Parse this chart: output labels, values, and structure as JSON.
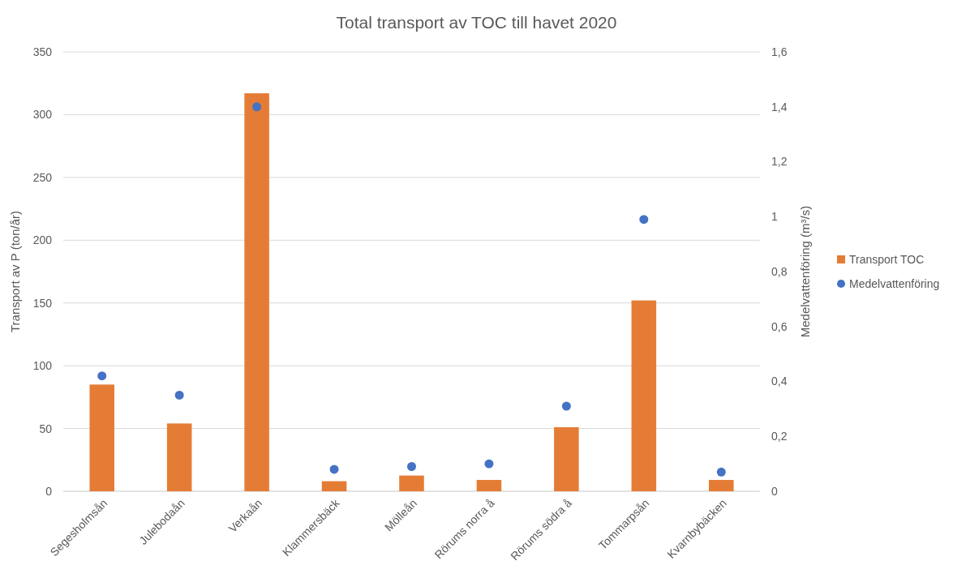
{
  "chart_data": {
    "type": "bar",
    "title": "Total transport av TOC till havet 2020",
    "ylabel": "Transport av P (ton/år)",
    "y2label": "Medelvattenföring (m³/s)",
    "categories": [
      "Segesholmsån",
      "Julebodaån",
      "Verkaån",
      "Klammersbäck",
      "Mölleån",
      "Rörums norra å",
      "Rörums södra å",
      "Tommarpsån",
      "Kvarnbybäcken"
    ],
    "series": [
      {
        "name": "Transport TOC",
        "color": "#e57c35",
        "values": [
          85,
          54,
          317,
          8,
          12.5,
          9,
          51,
          152,
          9
        ]
      },
      {
        "name": "Medelvattenföring",
        "type": "scatter",
        "axis": "y2",
        "color": "#4472c4",
        "values": [
          0.42,
          0.35,
          1.4,
          0.08,
          0.09,
          0.1,
          0.31,
          0.99,
          0.07
        ]
      }
    ],
    "ylim": [
      0,
      350
    ],
    "yticks": [
      0,
      50,
      100,
      150,
      200,
      250,
      300,
      350
    ],
    "y2lim": [
      0,
      1.6
    ],
    "y2ticks": [
      0,
      {
        "value": 0.2,
        "label": "0,2"
      },
      {
        "value": 0.4,
        "label": "0,4"
      },
      {
        "value": 0.6,
        "label": "0,6"
      },
      {
        "value": 0.8,
        "label": "0,8"
      },
      1,
      {
        "value": 1.2,
        "label": "1,2"
      },
      {
        "value": 1.4,
        "label": "1,4"
      },
      {
        "value": 1.6,
        "label": "1,6"
      }
    ],
    "grid": "y",
    "legend": "right",
    "marker": "circle"
  }
}
